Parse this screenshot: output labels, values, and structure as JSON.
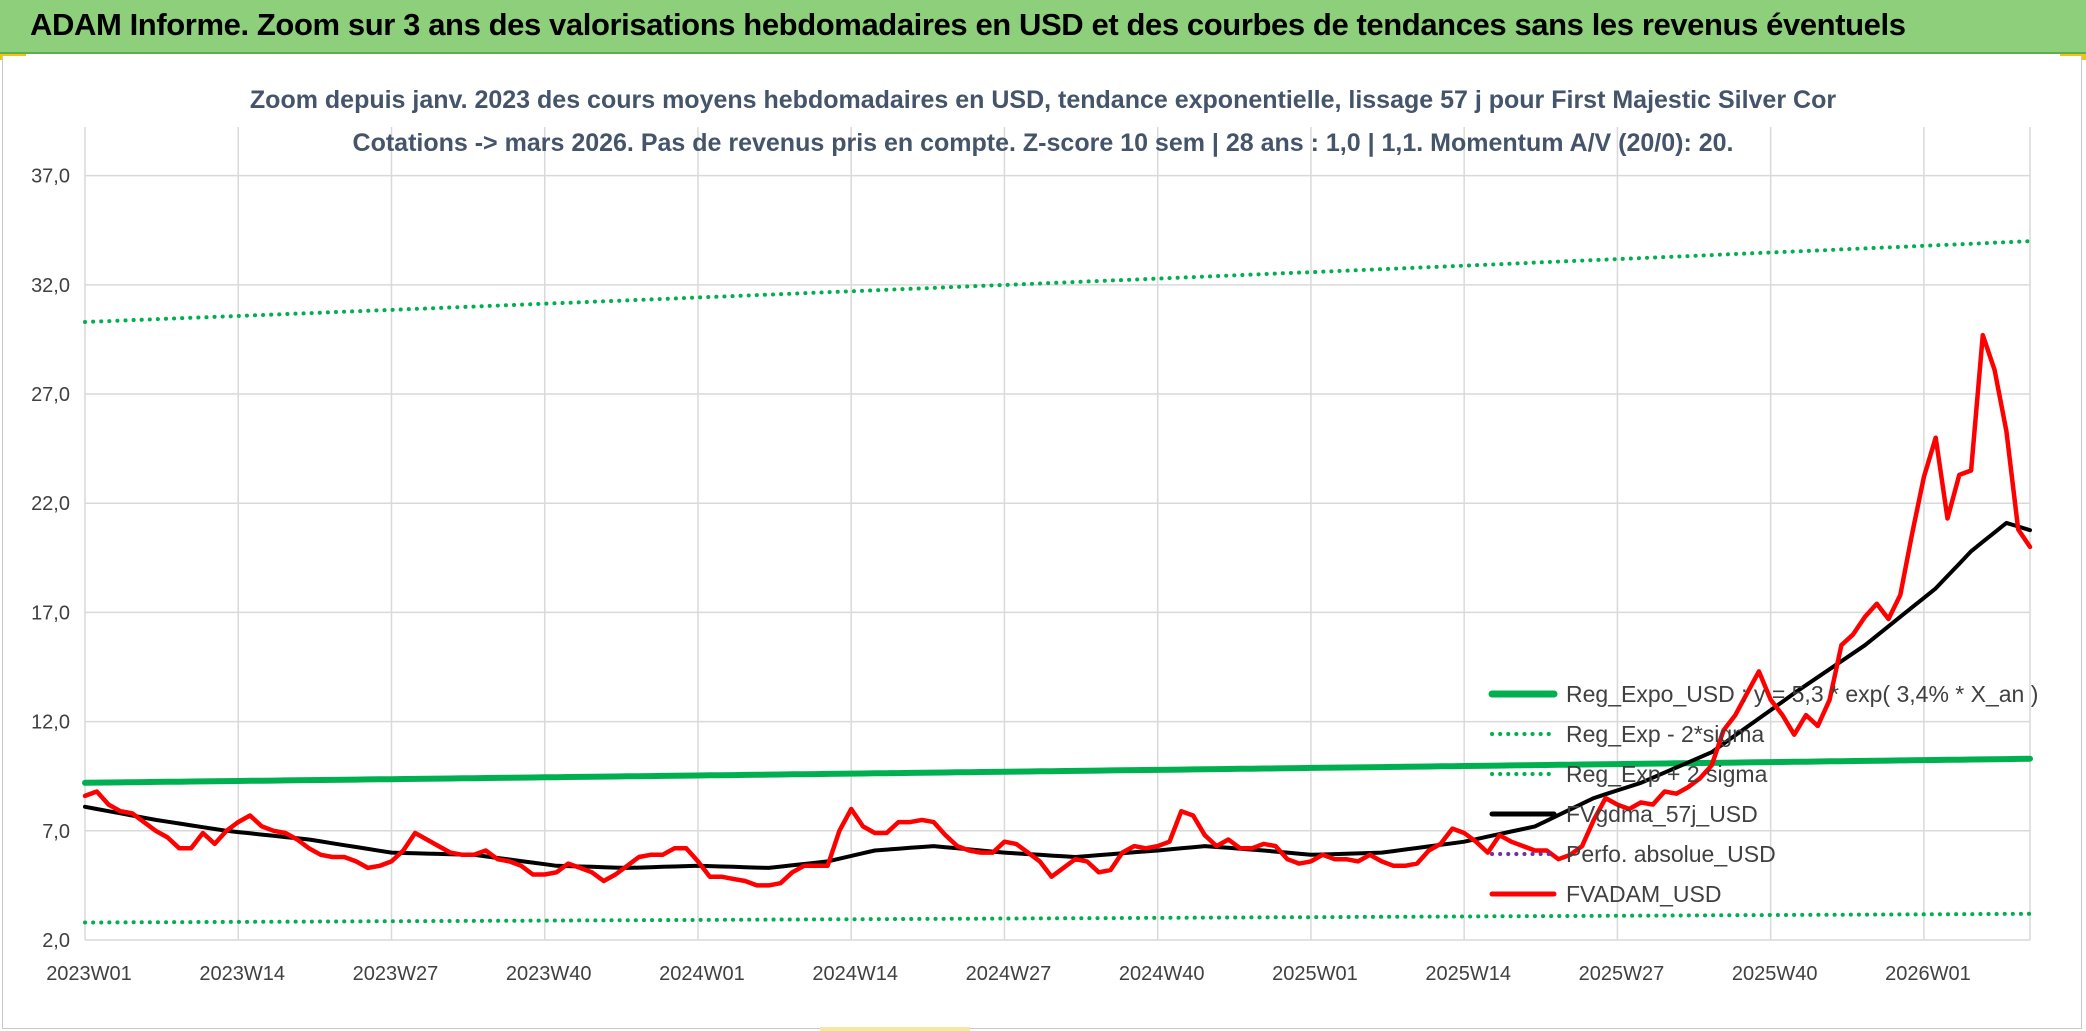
{
  "header": {
    "banner_title": "ADAM Informe. Zoom sur 3 ans des valorisations hebdomadaires en USD et des courbes de tendances sans les revenus éventuels"
  },
  "colors": {
    "banner_bg": "#8dcf7a",
    "title_text": "#44546a",
    "reg_expo": "#00b050",
    "fvgdma": "#000000",
    "fvadam": "#ff0000",
    "perfo": "#7030a0",
    "grid": "#d9d9d9"
  },
  "chart_data": {
    "type": "line",
    "title": "Zoom depuis janv. 2023 des cours moyens hebdomadaires en USD, tendance exponentielle, lissage 57 j pour First Majestic Silver Cor",
    "subtitle": "Cotations -> mars 2026. Pas de revenus pris en compte. Z-score 10 sem | 28 ans : 1,0 | 1,1. Momentum A/V (20/0): 20.",
    "xlabel": "",
    "ylabel": "",
    "ylim": [
      2,
      39
    ],
    "yticks": [
      2,
      7,
      12,
      17,
      22,
      27,
      32,
      37
    ],
    "ytick_labels": [
      "2,0",
      "7,0",
      "12,0",
      "17,0",
      "22,0",
      "27,0",
      "32,0",
      "37,0"
    ],
    "x_count": 166,
    "xtick_index": [
      0,
      13,
      26,
      39,
      52,
      65,
      78,
      91,
      104,
      117,
      130,
      143,
      156
    ],
    "xtick_labels": [
      "2023W01",
      "2023W14",
      "2023W27",
      "2023W40",
      "2024W01",
      "2024W14",
      "2024W27",
      "2024W40",
      "2025W01",
      "2025W14",
      "2025W27",
      "2025W40",
      "2026W01"
    ],
    "grid": true,
    "legend_position": "bottom-right inside plot",
    "series": [
      {
        "name": "Reg_Expo_USD : y = 5,3 * exp( 3,4% *  X_an )",
        "style": "solid-thick",
        "color": "#00b050",
        "start_value": 9.2,
        "end_value": 10.3
      },
      {
        "name": "Reg_Exp - 2*sigma",
        "style": "dotted",
        "color": "#00b050",
        "start_value": 30.3,
        "end_value": 34.0
      },
      {
        "name": "Reg_Exp + 2 sigma",
        "style": "dotted",
        "color": "#00b050",
        "start_value": 2.8,
        "end_value": 3.2
      },
      {
        "name": "FVgdma_57j_USD",
        "style": "solid",
        "color": "#000000",
        "keypoints": [
          [
            0,
            8.1
          ],
          [
            6,
            7.5
          ],
          [
            12,
            7.0
          ],
          [
            19,
            6.6
          ],
          [
            26,
            6.0
          ],
          [
            33,
            5.9
          ],
          [
            40,
            5.4
          ],
          [
            46,
            5.3
          ],
          [
            52,
            5.4
          ],
          [
            58,
            5.3
          ],
          [
            63,
            5.6
          ],
          [
            67,
            6.1
          ],
          [
            72,
            6.3
          ],
          [
            78,
            6.0
          ],
          [
            84,
            5.8
          ],
          [
            91,
            6.1
          ],
          [
            95,
            6.3
          ],
          [
            100,
            6.1
          ],
          [
            104,
            5.9
          ],
          [
            110,
            6.0
          ],
          [
            117,
            6.5
          ],
          [
            123,
            7.2
          ],
          [
            128,
            8.5
          ],
          [
            132,
            9.2
          ],
          [
            138,
            10.6
          ],
          [
            145,
            13.3
          ],
          [
            151,
            15.5
          ],
          [
            157,
            18.1
          ],
          [
            160,
            19.8
          ],
          [
            163,
            21.1
          ],
          [
            166,
            20.6
          ]
        ]
      },
      {
        "name": "Perfo. absolue_USD",
        "style": "dotted",
        "color": "#7030a0",
        "values": []
      },
      {
        "name": "FVADAM_USD",
        "style": "solid",
        "color": "#ff0000",
        "keypoints": [
          [
            0,
            8.6
          ],
          [
            1,
            8.8
          ],
          [
            2,
            8.2
          ],
          [
            3,
            7.9
          ],
          [
            4,
            7.8
          ],
          [
            5,
            7.4
          ],
          [
            6,
            7.0
          ],
          [
            7,
            6.7
          ],
          [
            8,
            6.2
          ],
          [
            9,
            6.2
          ],
          [
            10,
            6.9
          ],
          [
            11,
            6.4
          ],
          [
            12,
            7.0
          ],
          [
            13,
            7.4
          ],
          [
            14,
            7.7
          ],
          [
            15,
            7.2
          ],
          [
            16,
            7.0
          ],
          [
            17,
            6.9
          ],
          [
            18,
            6.6
          ],
          [
            19,
            6.2
          ],
          [
            20,
            5.9
          ],
          [
            21,
            5.8
          ],
          [
            22,
            5.8
          ],
          [
            23,
            5.6
          ],
          [
            24,
            5.3
          ],
          [
            25,
            5.4
          ],
          [
            26,
            5.6
          ],
          [
            27,
            6.1
          ],
          [
            28,
            6.9
          ],
          [
            29,
            6.6
          ],
          [
            30,
            6.3
          ],
          [
            31,
            6.0
          ],
          [
            32,
            5.9
          ],
          [
            33,
            5.9
          ],
          [
            34,
            6.1
          ],
          [
            35,
            5.7
          ],
          [
            36,
            5.6
          ],
          [
            37,
            5.4
          ],
          [
            38,
            5.0
          ],
          [
            39,
            5.0
          ],
          [
            40,
            5.1
          ],
          [
            41,
            5.5
          ],
          [
            42,
            5.3
          ],
          [
            43,
            5.1
          ],
          [
            44,
            4.7
          ],
          [
            45,
            5.0
          ],
          [
            46,
            5.4
          ],
          [
            47,
            5.8
          ],
          [
            48,
            5.9
          ],
          [
            49,
            5.9
          ],
          [
            50,
            6.2
          ],
          [
            51,
            6.2
          ],
          [
            52,
            5.6
          ],
          [
            53,
            4.9
          ],
          [
            54,
            4.9
          ],
          [
            55,
            4.8
          ],
          [
            56,
            4.7
          ],
          [
            57,
            4.5
          ],
          [
            58,
            4.5
          ],
          [
            59,
            4.6
          ],
          [
            60,
            5.1
          ],
          [
            61,
            5.4
          ],
          [
            62,
            5.4
          ],
          [
            63,
            5.4
          ],
          [
            64,
            7.0
          ],
          [
            65,
            8.0
          ],
          [
            66,
            7.2
          ],
          [
            67,
            6.9
          ],
          [
            68,
            6.9
          ],
          [
            69,
            7.4
          ],
          [
            70,
            7.4
          ],
          [
            71,
            7.5
          ],
          [
            72,
            7.4
          ],
          [
            73,
            6.8
          ],
          [
            74,
            6.3
          ],
          [
            75,
            6.1
          ],
          [
            76,
            6.0
          ],
          [
            77,
            6.0
          ],
          [
            78,
            6.5
          ],
          [
            79,
            6.4
          ],
          [
            80,
            6.0
          ],
          [
            81,
            5.6
          ],
          [
            82,
            4.9
          ],
          [
            83,
            5.3
          ],
          [
            84,
            5.7
          ],
          [
            85,
            5.6
          ],
          [
            86,
            5.1
          ],
          [
            87,
            5.2
          ],
          [
            88,
            6.0
          ],
          [
            89,
            6.3
          ],
          [
            90,
            6.2
          ],
          [
            91,
            6.3
          ],
          [
            92,
            6.5
          ],
          [
            93,
            7.9
          ],
          [
            94,
            7.7
          ],
          [
            95,
            6.8
          ],
          [
            96,
            6.3
          ],
          [
            97,
            6.6
          ],
          [
            98,
            6.2
          ],
          [
            99,
            6.2
          ],
          [
            100,
            6.4
          ],
          [
            101,
            6.3
          ],
          [
            102,
            5.7
          ],
          [
            103,
            5.5
          ],
          [
            104,
            5.6
          ],
          [
            105,
            5.9
          ],
          [
            106,
            5.7
          ],
          [
            107,
            5.7
          ],
          [
            108,
            5.6
          ],
          [
            109,
            5.9
          ],
          [
            110,
            5.6
          ],
          [
            111,
            5.4
          ],
          [
            112,
            5.4
          ],
          [
            113,
            5.5
          ],
          [
            114,
            6.1
          ],
          [
            115,
            6.4
          ],
          [
            116,
            7.1
          ],
          [
            117,
            6.9
          ],
          [
            118,
            6.5
          ],
          [
            119,
            6.0
          ],
          [
            120,
            6.8
          ],
          [
            121,
            6.5
          ],
          [
            122,
            6.3
          ],
          [
            123,
            6.1
          ],
          [
            124,
            6.1
          ],
          [
            125,
            5.7
          ],
          [
            126,
            5.9
          ],
          [
            127,
            6.3
          ],
          [
            128,
            7.5
          ],
          [
            129,
            8.5
          ],
          [
            130,
            8.2
          ],
          [
            131,
            8.0
          ],
          [
            132,
            8.3
          ],
          [
            133,
            8.2
          ],
          [
            134,
            8.8
          ],
          [
            135,
            8.7
          ],
          [
            136,
            9.0
          ],
          [
            137,
            9.4
          ],
          [
            138,
            10.0
          ],
          [
            139,
            11.6
          ],
          [
            140,
            12.3
          ],
          [
            141,
            13.3
          ],
          [
            142,
            14.3
          ],
          [
            143,
            13.0
          ],
          [
            144,
            12.3
          ],
          [
            145,
            11.4
          ],
          [
            146,
            12.3
          ],
          [
            147,
            11.8
          ],
          [
            148,
            13.0
          ],
          [
            149,
            15.5
          ],
          [
            150,
            16.0
          ],
          [
            151,
            16.8
          ],
          [
            152,
            17.4
          ],
          [
            153,
            16.7
          ],
          [
            154,
            17.8
          ],
          [
            155,
            20.6
          ],
          [
            156,
            23.2
          ],
          [
            157,
            25.0
          ],
          [
            158,
            21.3
          ],
          [
            159,
            23.3
          ],
          [
            160,
            23.5
          ],
          [
            161,
            29.7
          ],
          [
            162,
            28.1
          ],
          [
            163,
            25.3
          ],
          [
            164,
            20.8
          ],
          [
            165,
            20.0
          ]
        ]
      }
    ]
  }
}
